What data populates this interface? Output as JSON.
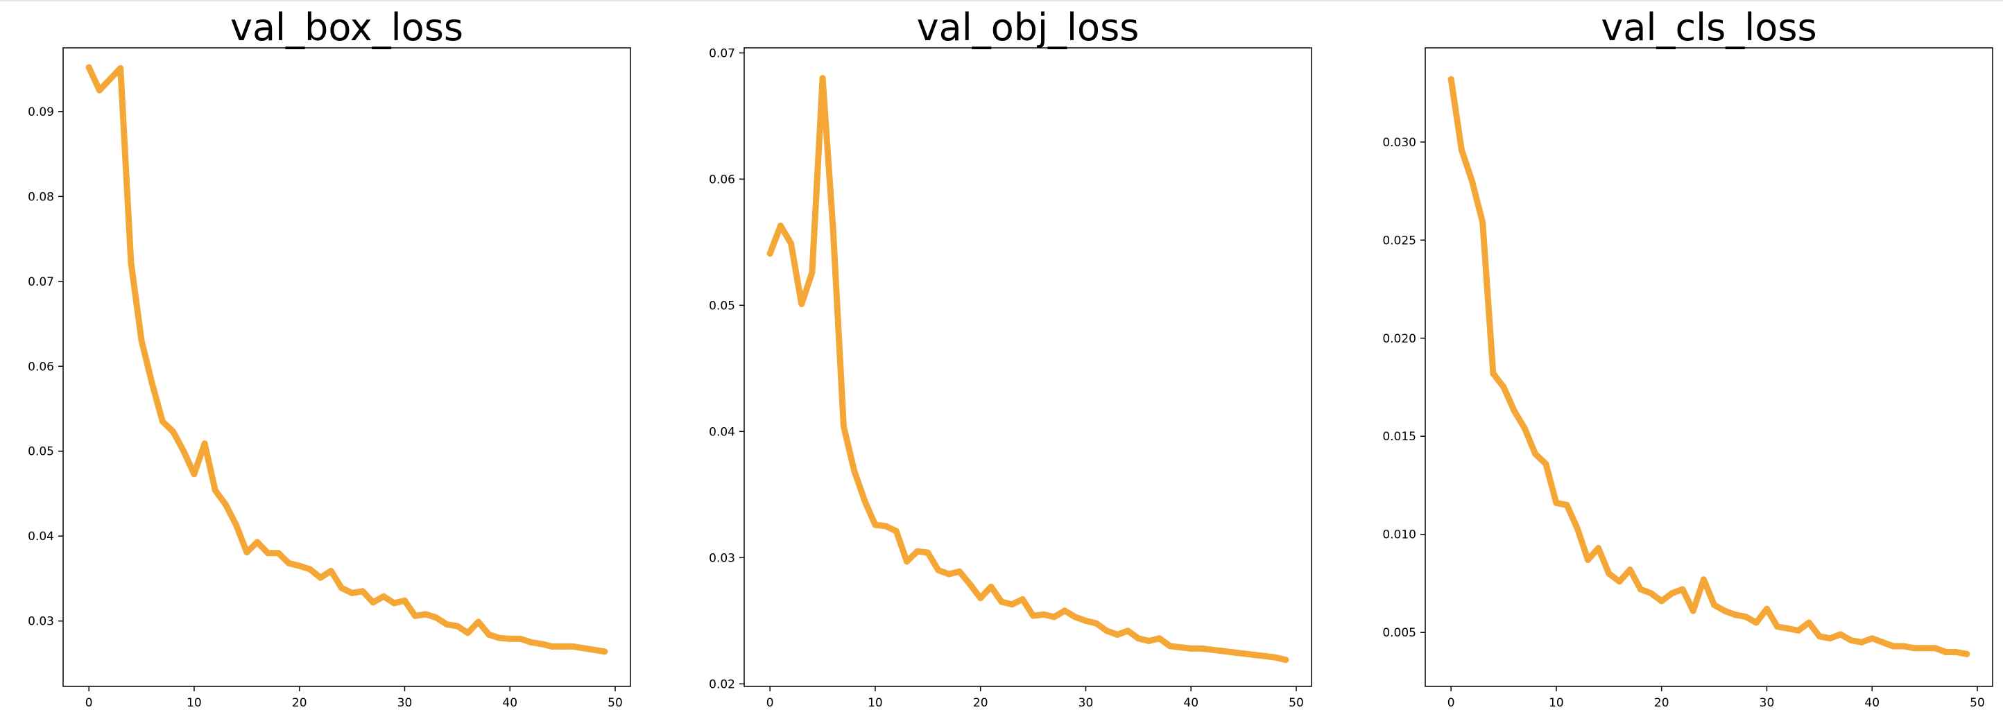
{
  "colors": {
    "series": "#f4a736"
  },
  "chart_data": [
    {
      "type": "line",
      "title": "val_box_loss",
      "xlim": [
        -2.45,
        51.45
      ],
      "ylim": [
        0.0223,
        0.0975
      ],
      "xticks": [
        0,
        10,
        20,
        30,
        40,
        50
      ],
      "yticks": [
        0.03,
        0.04,
        0.05,
        0.06,
        0.07,
        0.08,
        0.09
      ],
      "ytick_labels": [
        "0.03",
        "0.04",
        "0.05",
        "0.06",
        "0.07",
        "0.08",
        "0.09"
      ],
      "series": [
        {
          "x": [
            0,
            1,
            2,
            3,
            4,
            5,
            6,
            7,
            8,
            9,
            10,
            11,
            12,
            13,
            14,
            15,
            16,
            17,
            18,
            19,
            20,
            21,
            22,
            23,
            24,
            25,
            26,
            27,
            28,
            29,
            30,
            31,
            32,
            33,
            34,
            35,
            36,
            37,
            38,
            39,
            40,
            41,
            42,
            43,
            44,
            45,
            46,
            47,
            48,
            49
          ],
          "values": [
            0.0952,
            0.0925,
            0.0938,
            0.0951,
            0.0722,
            0.063,
            0.058,
            0.0535,
            0.0523,
            0.05,
            0.0473,
            0.0509,
            0.0454,
            0.0437,
            0.0413,
            0.0381,
            0.0393,
            0.038,
            0.038,
            0.0368,
            0.0365,
            0.0361,
            0.0351,
            0.0359,
            0.0339,
            0.0333,
            0.0335,
            0.0322,
            0.0329,
            0.0321,
            0.0324,
            0.0306,
            0.0308,
            0.0304,
            0.0296,
            0.0294,
            0.0286,
            0.0299,
            0.0284,
            0.028,
            0.0279,
            0.0279,
            0.0275,
            0.0273,
            0.027,
            0.027,
            0.027,
            0.0268,
            0.0266,
            0.0264
          ]
        }
      ]
    },
    {
      "type": "line",
      "title": "val_obj_loss",
      "xlim": [
        -2.45,
        51.45
      ],
      "ylim": [
        0.0198,
        0.0704
      ],
      "xticks": [
        0,
        10,
        20,
        30,
        40,
        50
      ],
      "yticks": [
        0.02,
        0.03,
        0.04,
        0.05,
        0.06,
        0.07
      ],
      "ytick_labels": [
        "0.02",
        "0.03",
        "0.04",
        "0.05",
        "0.06",
        "0.07"
      ],
      "series": [
        {
          "x": [
            0,
            1,
            2,
            3,
            4,
            5,
            6,
            7,
            8,
            9,
            10,
            11,
            12,
            13,
            14,
            15,
            16,
            17,
            18,
            19,
            20,
            21,
            22,
            23,
            24,
            25,
            26,
            27,
            28,
            29,
            30,
            31,
            32,
            33,
            34,
            35,
            36,
            37,
            38,
            39,
            40,
            41,
            42,
            43,
            44,
            45,
            46,
            47,
            48,
            49
          ],
          "values": [
            0.0541,
            0.0563,
            0.0549,
            0.0501,
            0.0526,
            0.068,
            0.056,
            0.0404,
            0.0369,
            0.0345,
            0.0326,
            0.0325,
            0.0321,
            0.0297,
            0.0305,
            0.0304,
            0.029,
            0.0287,
            0.0289,
            0.0279,
            0.0268,
            0.0277,
            0.0265,
            0.0263,
            0.0267,
            0.0254,
            0.0255,
            0.0253,
            0.0258,
            0.0253,
            0.025,
            0.0248,
            0.0242,
            0.0239,
            0.0242,
            0.0236,
            0.0234,
            0.0236,
            0.023,
            0.0229,
            0.0228,
            0.0228,
            0.0227,
            0.0226,
            0.0225,
            0.0224,
            0.0223,
            0.0222,
            0.0221,
            0.0219
          ]
        }
      ]
    },
    {
      "type": "line",
      "title": "val_cls_loss",
      "xlim": [
        -2.45,
        51.45
      ],
      "ylim": [
        0.00225,
        0.0348
      ],
      "xticks": [
        0,
        10,
        20,
        30,
        40,
        50
      ],
      "yticks": [
        0.005,
        0.01,
        0.015,
        0.02,
        0.025,
        0.03
      ],
      "ytick_labels": [
        "0.005",
        "0.010",
        "0.015",
        "0.020",
        "0.025",
        "0.030"
      ],
      "series": [
        {
          "x": [
            0,
            1,
            2,
            3,
            4,
            5,
            6,
            7,
            8,
            9,
            10,
            11,
            12,
            13,
            14,
            15,
            16,
            17,
            18,
            19,
            20,
            21,
            22,
            23,
            24,
            25,
            26,
            27,
            28,
            29,
            30,
            31,
            32,
            33,
            34,
            35,
            36,
            37,
            38,
            39,
            40,
            41,
            42,
            43,
            44,
            45,
            46,
            47,
            48,
            49
          ],
          "values": [
            0.0332,
            0.0296,
            0.028,
            0.0259,
            0.0182,
            0.0175,
            0.0163,
            0.0154,
            0.0141,
            0.0136,
            0.0116,
            0.0115,
            0.0103,
            0.0087,
            0.0093,
            0.008,
            0.0076,
            0.0082,
            0.0072,
            0.007,
            0.0066,
            0.007,
            0.0072,
            0.0061,
            0.0077,
            0.0064,
            0.0061,
            0.0059,
            0.0058,
            0.0055,
            0.0062,
            0.0053,
            0.0052,
            0.0051,
            0.0055,
            0.0048,
            0.0047,
            0.0049,
            0.0046,
            0.0045,
            0.0047,
            0.0045,
            0.0043,
            0.0043,
            0.0042,
            0.0042,
            0.0042,
            0.004,
            0.004,
            0.0039
          ]
        }
      ]
    }
  ]
}
